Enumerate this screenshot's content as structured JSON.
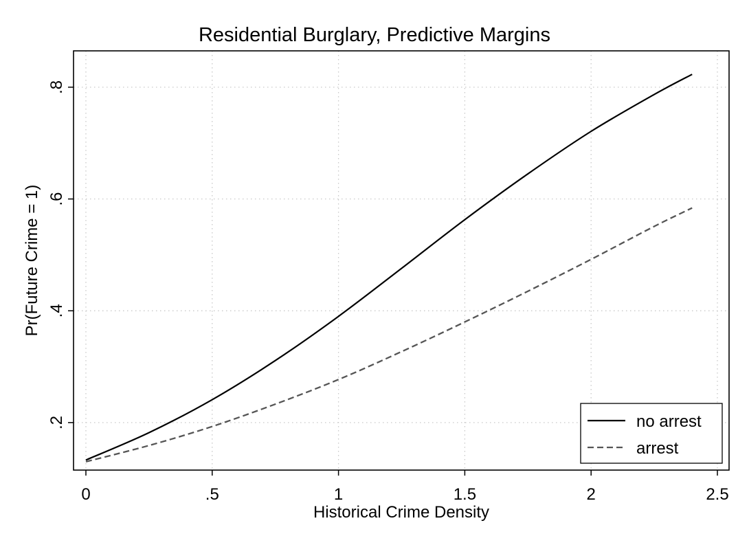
{
  "chart_data": {
    "type": "line",
    "title": "Residential Burglary, Predictive Margins",
    "xlabel": "Historical Crime Density",
    "ylabel": "Pr(Future Crime = 1)",
    "xlim": [
      0,
      2.5
    ],
    "ylim": [
      0.115,
      0.865
    ],
    "xticks": [
      0,
      0.5,
      1,
      1.5,
      2,
      2.5
    ],
    "xtick_labels": [
      "0",
      ".5",
      "1",
      "1.5",
      "2",
      "2.5"
    ],
    "yticks": [
      0.2,
      0.4,
      0.6,
      0.8
    ],
    "ytick_labels": [
      ".2",
      ".4",
      ".6",
      ".8"
    ],
    "grid": true,
    "legend_position": "bottom-right",
    "x": [
      0,
      0.25,
      0.5,
      0.75,
      1.0,
      1.25,
      1.5,
      1.75,
      2.0,
      2.25,
      2.4
    ],
    "series": [
      {
        "name": "no arrest",
        "values": [
          0.133,
          0.182,
          0.241,
          0.311,
          0.39,
          0.476,
          0.563,
          0.645,
          0.721,
          0.787,
          0.823
        ],
        "color": "#000000",
        "style": "solid"
      },
      {
        "name": "arrest",
        "values": [
          0.13,
          0.159,
          0.193,
          0.233,
          0.277,
          0.327,
          0.38,
          0.435,
          0.492,
          0.551,
          0.584
        ],
        "color": "#555555",
        "style": "dashed"
      }
    ]
  }
}
